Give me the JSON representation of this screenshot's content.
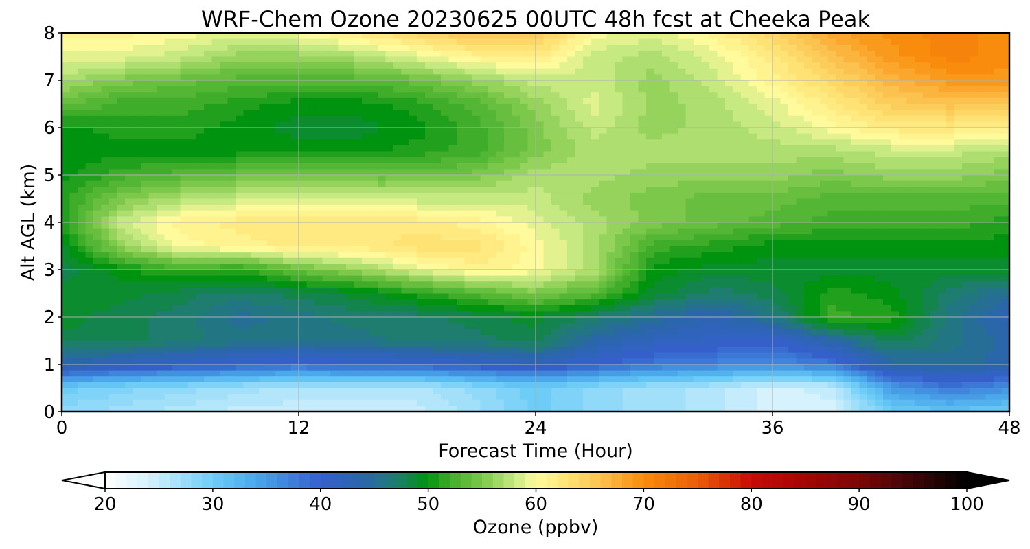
{
  "chart_data": {
    "type": "heatmap",
    "title": "WRF-Chem Ozone  20230625 00UTC 48h fcst at Cheeka Peak",
    "xlabel": "Forecast Time (Hour)",
    "ylabel": "Alt AGL (km)",
    "xlim": [
      0,
      48
    ],
    "ylim": [
      0,
      8
    ],
    "xticks": [
      0,
      12,
      24,
      36,
      48
    ],
    "yticks": [
      0,
      1,
      2,
      3,
      4,
      5,
      6,
      7,
      8
    ],
    "grid": true,
    "x": [
      0,
      3,
      6,
      9,
      12,
      15,
      18,
      21,
      24,
      27,
      30,
      33,
      36,
      39,
      42,
      45,
      48
    ],
    "y": [
      0,
      0.5,
      1,
      1.5,
      2,
      2.5,
      3,
      3.5,
      4,
      4.5,
      5,
      5.5,
      6,
      6.5,
      7,
      7.5,
      8
    ],
    "z": [
      [
        28,
        27,
        26,
        25,
        25,
        25,
        25,
        27,
        30,
        28,
        27,
        26,
        24,
        24,
        30,
        31,
        30
      ],
      [
        30,
        29,
        28,
        27,
        26,
        26,
        26,
        28,
        30,
        28,
        27,
        26,
        24,
        25,
        35,
        38,
        36
      ],
      [
        44,
        42,
        41,
        40,
        39,
        40,
        40,
        41,
        42,
        40,
        38,
        37,
        36,
        38,
        44,
        45,
        44
      ],
      [
        48,
        48,
        47,
        46,
        46,
        46,
        47,
        47,
        48,
        44,
        42,
        41,
        40,
        44,
        48,
        46,
        44
      ],
      [
        49,
        48,
        47,
        45,
        46,
        47,
        47,
        48,
        49,
        47,
        45,
        43,
        46,
        52,
        51,
        46,
        43
      ],
      [
        49,
        49,
        48,
        47,
        48,
        49,
        51,
        53,
        55,
        53,
        49,
        47,
        48,
        51,
        50,
        47,
        45
      ],
      [
        48,
        50,
        52,
        51,
        54,
        56,
        59,
        61,
        60,
        57,
        50,
        49,
        49,
        49,
        49,
        49,
        49
      ],
      [
        49,
        56,
        60,
        61,
        62,
        62,
        63,
        63,
        60,
        57,
        52,
        51,
        50,
        50,
        50,
        50,
        50
      ],
      [
        51,
        58,
        61,
        62,
        62,
        62,
        62,
        61,
        59,
        57,
        55,
        54,
        53,
        52,
        52,
        52,
        51
      ],
      [
        51,
        55,
        57,
        58,
        58,
        58,
        58,
        58,
        58,
        56,
        55,
        54,
        54,
        53,
        53,
        53,
        53
      ],
      [
        50,
        52,
        53,
        54,
        54,
        54,
        54,
        55,
        57,
        57,
        56,
        56,
        56,
        55,
        56,
        56,
        55
      ],
      [
        50,
        50,
        50,
        50,
        50,
        50,
        51,
        52,
        55,
        57,
        57,
        57,
        57,
        57,
        58,
        58,
        57
      ],
      [
        50,
        51,
        51,
        50,
        49,
        49,
        50,
        52,
        55,
        58,
        56,
        57,
        58,
        60,
        62,
        62,
        61
      ],
      [
        54,
        52,
        52,
        51,
        50,
        50,
        51,
        53,
        56,
        59,
        56,
        57,
        59,
        62,
        65,
        66,
        66
      ],
      [
        57,
        55,
        54,
        53,
        53,
        53,
        54,
        56,
        58,
        58,
        56,
        58,
        61,
        64,
        67,
        69,
        69
      ],
      [
        59,
        59,
        58,
        56,
        56,
        57,
        59,
        61,
        62,
        58,
        57,
        59,
        62,
        66,
        69,
        71,
        70
      ],
      [
        61,
        61,
        60,
        59,
        60,
        62,
        64,
        66,
        66,
        60,
        59,
        61,
        64,
        68,
        70,
        71,
        70
      ]
    ],
    "colorbar": {
      "label": "Ozone  (ppbv)",
      "min": 20,
      "max": 100,
      "extend": "both",
      "ticks": [
        20,
        30,
        40,
        50,
        60,
        70,
        80,
        90,
        100
      ],
      "orientation": "horizontal",
      "color_stops": [
        {
          "v": 20,
          "c": "#ffffff"
        },
        {
          "v": 24,
          "c": "#d6f2fd"
        },
        {
          "v": 30,
          "c": "#6dcdf7"
        },
        {
          "v": 34,
          "c": "#4aa8eb"
        },
        {
          "v": 40,
          "c": "#3560cb"
        },
        {
          "v": 44,
          "c": "#2a66aa"
        },
        {
          "v": 47,
          "c": "#1e7d6f"
        },
        {
          "v": 50,
          "c": "#00930f"
        },
        {
          "v": 52,
          "c": "#3fad2a"
        },
        {
          "v": 55,
          "c": "#7cc84a"
        },
        {
          "v": 58,
          "c": "#c6e982"
        },
        {
          "v": 60,
          "c": "#fffb9c"
        },
        {
          "v": 63,
          "c": "#fee274"
        },
        {
          "v": 66,
          "c": "#fcc24f"
        },
        {
          "v": 70,
          "c": "#f98c0c"
        },
        {
          "v": 75,
          "c": "#ea5d07"
        },
        {
          "v": 80,
          "c": "#c80a05"
        },
        {
          "v": 85,
          "c": "#a30604"
        },
        {
          "v": 90,
          "c": "#7b0707"
        },
        {
          "v": 95,
          "c": "#3d0505"
        },
        {
          "v": 100,
          "c": "#000000"
        }
      ]
    }
  }
}
